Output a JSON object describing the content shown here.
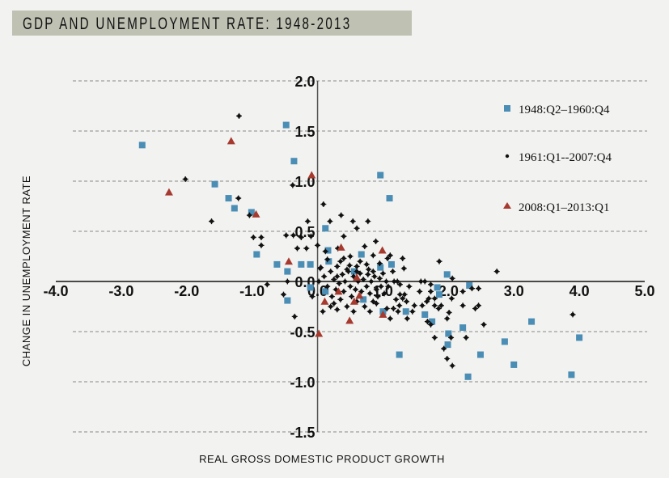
{
  "chart_data": {
    "type": "scatter",
    "title": "GDP AND UNEMPLOYMENT RATE: 1948-2013",
    "xlabel": "REAL GROSS DOMESTIC PRODUCT GROWTH",
    "ylabel": "CHANGE IN UNEMPLOYMENT RATE",
    "xlim": [
      -4.0,
      5.0
    ],
    "ylim": [
      -1.5,
      2.0
    ],
    "x_ticks": [
      "-4.0",
      "-3.0",
      "-2.0",
      "-1.0",
      "0.0",
      "1.0",
      "2.0",
      "3.0",
      "4.0",
      "5.0"
    ],
    "x_tick_values": [
      -4,
      -3,
      -2,
      -1,
      0,
      1,
      2,
      3,
      4,
      5
    ],
    "y_ticks": [
      "2.0",
      "1.5",
      "1.0",
      "0.5",
      "0.0",
      "-0.5",
      "-1.0",
      "-1.5"
    ],
    "y_tick_values": [
      2,
      1.5,
      1,
      0.5,
      0,
      -0.5,
      -1,
      -1.5
    ],
    "grid": "horizontal dashed",
    "legend_position": "top-right",
    "series": [
      {
        "name": "1948:Q2–1960:Q4",
        "marker": "square",
        "color": "#4a8db5",
        "points": [
          [
            -2.68,
            1.36
          ],
          [
            -0.48,
            1.56
          ],
          [
            -0.36,
            1.2
          ],
          [
            0.96,
            1.06
          ],
          [
            -1.57,
            0.97
          ],
          [
            -1.36,
            0.83
          ],
          [
            -1.27,
            0.73
          ],
          [
            -1.01,
            0.69
          ],
          [
            1.1,
            0.83
          ],
          [
            -0.93,
            0.27
          ],
          [
            -0.62,
            0.17
          ],
          [
            -0.25,
            0.17
          ],
          [
            -0.11,
            0.17
          ],
          [
            -0.46,
            0.1
          ],
          [
            -0.46,
            -0.19
          ],
          [
            -0.11,
            -0.06
          ],
          [
            0.12,
            0.53
          ],
          [
            0.16,
            0.31
          ],
          [
            0.17,
            0.2
          ],
          [
            0.67,
            0.27
          ],
          [
            0.56,
            0.1
          ],
          [
            0.96,
            0.14
          ],
          [
            1.13,
            0.17
          ],
          [
            0.12,
            -0.1
          ],
          [
            0.7,
            -0.18
          ],
          [
            1.0,
            -0.3
          ],
          [
            1.35,
            -0.3
          ],
          [
            1.64,
            -0.33
          ],
          [
            1.75,
            -0.4
          ],
          [
            1.83,
            -0.06
          ],
          [
            1.86,
            -0.13
          ],
          [
            1.98,
            0.07
          ],
          [
            2.22,
            -0.46
          ],
          [
            2.0,
            -0.52
          ],
          [
            1.99,
            -0.63
          ],
          [
            2.32,
            -0.04
          ],
          [
            1.25,
            -0.73
          ],
          [
            2.3,
            -0.95
          ],
          [
            2.49,
            -0.73
          ],
          [
            2.86,
            -0.6
          ],
          [
            3.0,
            -0.83
          ],
          [
            3.27,
            -0.4
          ],
          [
            3.88,
            -0.93
          ],
          [
            4.0,
            -0.56
          ]
        ]
      },
      {
        "name": "1961:Q1--2007:Q4",
        "marker": "dot",
        "color": "#111111",
        "points": [
          [
            -1.2,
            1.65
          ],
          [
            -2.02,
            1.02
          ],
          [
            -0.38,
            0.96
          ],
          [
            -1.21,
            0.83
          ],
          [
            -1.62,
            0.6
          ],
          [
            -1.04,
            0.66
          ],
          [
            -0.98,
            0.44
          ],
          [
            -0.86,
            0.44
          ],
          [
            -0.86,
            0.36
          ],
          [
            -0.48,
            0.46
          ],
          [
            -0.37,
            0.46
          ],
          [
            -0.25,
            0.44
          ],
          [
            -0.31,
            0.33
          ],
          [
            -0.17,
            0.33
          ],
          [
            -0.15,
            0.6
          ],
          [
            0.0,
            0.36
          ],
          [
            0.09,
            0.77
          ],
          [
            0.19,
            0.6
          ],
          [
            -0.77,
            -0.03
          ],
          [
            -0.52,
            -0.13
          ],
          [
            -0.46,
            0.0
          ],
          [
            0.04,
            0.13
          ],
          [
            0.02,
            0.0
          ],
          [
            0.36,
            0.66
          ],
          [
            0.54,
            0.6
          ],
          [
            0.77,
            0.6
          ],
          [
            0.6,
            0.53
          ],
          [
            0.89,
            0.4
          ],
          [
            0.31,
            0.33
          ],
          [
            0.4,
            0.23
          ],
          [
            0.05,
            0.14
          ],
          [
            0.49,
            0.16
          ],
          [
            0.6,
            0.15
          ],
          [
            0.75,
            0.17
          ],
          [
            0.85,
            0.26
          ],
          [
            1.07,
            0.23
          ],
          [
            1.11,
            0.26
          ],
          [
            1.3,
            0.23
          ],
          [
            1.32,
            0.13
          ],
          [
            1.86,
            0.2
          ],
          [
            2.06,
            0.03
          ],
          [
            2.74,
            0.1
          ],
          [
            1.17,
            0.0
          ],
          [
            1.22,
            0.0
          ],
          [
            1.26,
            -0.03
          ],
          [
            1.58,
            0.0
          ],
          [
            1.64,
            0.0
          ],
          [
            1.73,
            -0.03
          ],
          [
            1.56,
            -0.1
          ],
          [
            1.73,
            -0.1
          ],
          [
            2.22,
            -0.1
          ],
          [
            2.36,
            -0.07
          ],
          [
            2.46,
            -0.07
          ],
          [
            2.05,
            -0.17
          ],
          [
            1.26,
            -0.13
          ],
          [
            1.33,
            -0.13
          ],
          [
            1.3,
            -0.17
          ],
          [
            1.36,
            -0.2
          ],
          [
            1.48,
            -0.24
          ],
          [
            1.6,
            -0.24
          ],
          [
            1.67,
            -0.2
          ],
          [
            1.7,
            -0.17
          ],
          [
            1.79,
            -0.17
          ],
          [
            1.79,
            -0.24
          ],
          [
            1.85,
            -0.27
          ],
          [
            1.89,
            -0.24
          ],
          [
            1.06,
            -0.27
          ],
          [
            1.16,
            -0.27
          ],
          [
            1.25,
            -0.24
          ],
          [
            1.23,
            -0.3
          ],
          [
            1.11,
            -0.37
          ],
          [
            1.37,
            -0.37
          ],
          [
            2.01,
            -0.31
          ],
          [
            1.98,
            -0.37
          ],
          [
            1.68,
            -0.4
          ],
          [
            1.73,
            -0.43
          ],
          [
            2.22,
            -0.24
          ],
          [
            2.41,
            -0.27
          ],
          [
            2.46,
            -0.24
          ],
          [
            2.54,
            -0.43
          ],
          [
            1.79,
            -0.56
          ],
          [
            2.04,
            -0.56
          ],
          [
            2.27,
            -0.56
          ],
          [
            1.93,
            -0.67
          ],
          [
            1.98,
            -0.77
          ],
          [
            2.06,
            -0.84
          ],
          [
            3.9,
            -0.33
          ],
          [
            -0.35,
            -0.35
          ],
          [
            -0.1,
            0.45
          ],
          [
            -0.08,
            -0.15
          ],
          [
            0.1,
            0.05
          ],
          [
            0.15,
            -0.05
          ],
          [
            0.2,
            0.1
          ],
          [
            0.22,
            -0.15
          ],
          [
            0.25,
            0.02
          ],
          [
            0.28,
            -0.08
          ],
          [
            0.3,
            0.15
          ],
          [
            0.33,
            -0.02
          ],
          [
            0.35,
            -0.18
          ],
          [
            0.38,
            0.07
          ],
          [
            0.4,
            -0.1
          ],
          [
            0.42,
            0.0
          ],
          [
            0.45,
            -0.25
          ],
          [
            0.47,
            0.1
          ],
          [
            0.5,
            -0.05
          ],
          [
            0.52,
            -0.15
          ],
          [
            0.55,
            0.05
          ],
          [
            0.58,
            -0.08
          ],
          [
            0.6,
            -0.2
          ],
          [
            0.62,
            0.0
          ],
          [
            0.65,
            0.08
          ],
          [
            0.67,
            -0.1
          ],
          [
            0.7,
            0.02
          ],
          [
            0.72,
            -0.25
          ],
          [
            0.75,
            -0.05
          ],
          [
            0.77,
            0.07
          ],
          [
            0.8,
            -0.12
          ],
          [
            0.82,
            0.0
          ],
          [
            0.85,
            -0.2
          ],
          [
            0.87,
            0.05
          ],
          [
            0.9,
            -0.08
          ],
          [
            0.92,
            -0.15
          ],
          [
            0.95,
            0.03
          ],
          [
            0.97,
            -0.05
          ],
          [
            1.0,
            0.08
          ],
          [
            1.02,
            -0.12
          ],
          [
            1.05,
            0.0
          ],
          [
            1.08,
            -0.05
          ],
          [
            0.3,
            -0.28
          ],
          [
            0.55,
            -0.3
          ],
          [
            0.8,
            -0.3
          ],
          [
            0.9,
            -0.22
          ],
          [
            0.35,
            0.2
          ],
          [
            0.65,
            0.2
          ],
          [
            0.45,
            0.12
          ],
          [
            0.78,
            0.12
          ],
          [
            0.25,
            -0.22
          ],
          [
            0.15,
            0.22
          ],
          [
            0.72,
            0.35
          ],
          [
            0.4,
            0.45
          ],
          [
            0.85,
            0.1
          ],
          [
            0.95,
            0.18
          ],
          [
            0.2,
            -0.25
          ],
          [
            0.6,
            0.1
          ],
          [
            0.5,
            0.25
          ],
          [
            0.3,
            0.05
          ],
          [
            1.15,
            0.1
          ],
          [
            1.2,
            -0.18
          ],
          [
            1.4,
            -0.05
          ],
          [
            1.45,
            -0.3
          ],
          [
            0.08,
            -0.3
          ],
          [
            0.12,
            0.3
          ]
        ]
      },
      {
        "name": "2008:Q1–2013:Q1",
        "marker": "triangle",
        "color": "#a63a2e",
        "points": [
          [
            -1.32,
            1.4
          ],
          [
            -2.27,
            0.89
          ],
          [
            -0.94,
            0.67
          ],
          [
            -0.09,
            1.06
          ],
          [
            -0.44,
            0.2
          ],
          [
            0.36,
            0.34
          ],
          [
            0.99,
            0.31
          ],
          [
            0.6,
            0.04
          ],
          [
            0.32,
            -0.1
          ],
          [
            0.11,
            -0.2
          ],
          [
            0.56,
            -0.2
          ],
          [
            0.49,
            -0.39
          ],
          [
            1.0,
            -0.33
          ],
          [
            0.02,
            -0.52
          ],
          [
            0.64,
            -0.14
          ]
        ]
      }
    ]
  }
}
